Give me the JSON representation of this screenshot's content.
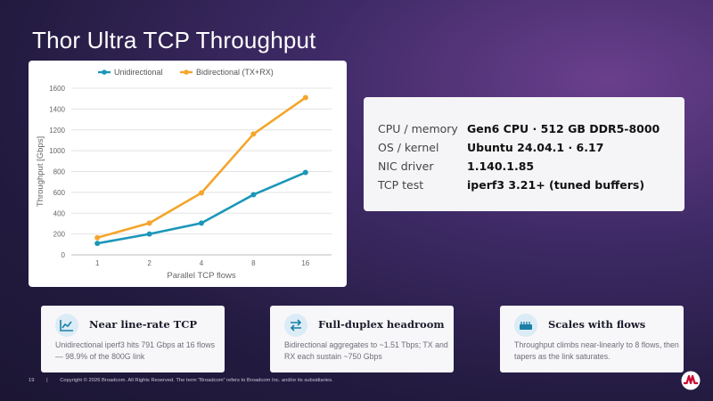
{
  "slide": {
    "title": "Thor Ultra TCP Throughput",
    "page_number": "19",
    "separator": "|",
    "copyright": "Copyright © 2026 Broadcom. All Rights Reserved. The term “Broadcom” refers to Broadcom Inc. and/or its subsidiaries.",
    "logo_icon": "broadcom-logo-icon",
    "logo_color": "#cc092f"
  },
  "chart_data": {
    "type": "line",
    "categories": [
      "1",
      "2",
      "4",
      "8",
      "16"
    ],
    "series": [
      {
        "name": "Unidirectional",
        "color": "#1b97b8",
        "values": [
          110,
          200,
          305,
          578,
          791
        ]
      },
      {
        "name": "Bidirectional (TX+RX)",
        "color": "#f4a52b",
        "values": [
          165,
          305,
          595,
          1160,
          1510
        ]
      }
    ],
    "xlabel": "Parallel TCP flows",
    "ylabel": "Throughput [Gbps]",
    "ylim": [
      0,
      1600
    ],
    "yticks": [
      "0",
      "200",
      "400",
      "600",
      "800",
      "1000",
      "1200",
      "1400",
      "1600"
    ],
    "grid": true,
    "legend": "top"
  },
  "system": {
    "rows": [
      {
        "key": "CPU / memory",
        "value": "Gen6 CPU · 512 GB DDR5-8000"
      },
      {
        "key": "OS / kernel",
        "value": "Ubuntu 24.04.1 · 6.17"
      },
      {
        "key": "NIC driver",
        "value": "1.140.1.85"
      },
      {
        "key": "TCP test",
        "value": "iperf3 3.21+ (tuned buffers)"
      }
    ]
  },
  "features": [
    {
      "icon": "line-chart-icon",
      "title": "Near line-rate TCP",
      "desc": "Unidirectional iperf3 hits 791 Gbps at 16 flows — 98.9% of the 800G link"
    },
    {
      "icon": "bidirectional-arrows-icon",
      "title": "Full-duplex headroom",
      "desc": "Bidirectional aggregates to ~1.51 Tbps; TX and RX each sustain ~750 Gbps"
    },
    {
      "icon": "network-switch-icon",
      "title": "Scales with flows",
      "desc": "Throughput climbs near-linearly to 8 flows, then tapers as the link saturates."
    }
  ],
  "colors": {
    "icon_accent": "#1b7fa8",
    "icon_bg": "#dcecf6"
  }
}
